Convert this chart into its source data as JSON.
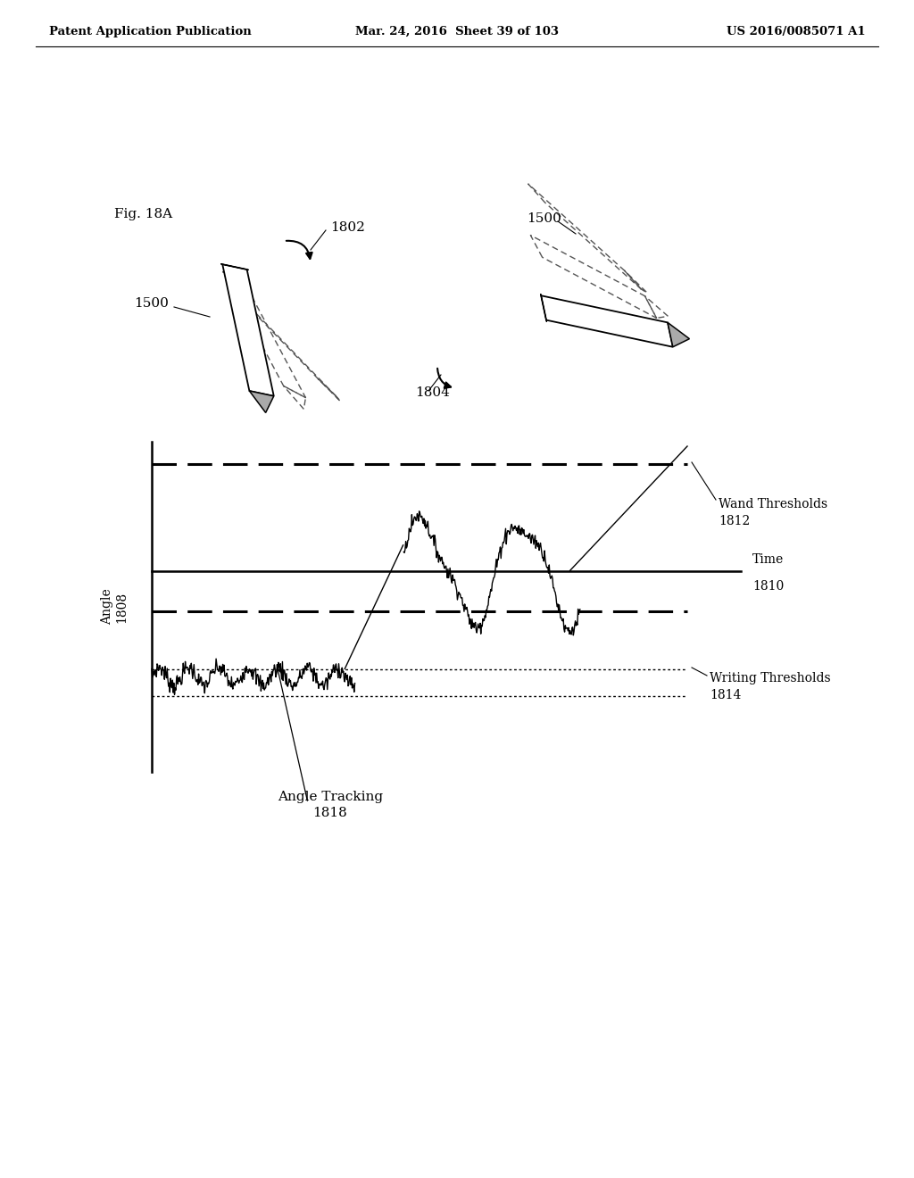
{
  "title_left": "Patent Application Publication",
  "title_center": "Mar. 24, 2016  Sheet 39 of 103",
  "title_right": "US 2016/0085071 A1",
  "fig_label": "Fig. 18A",
  "label_1500_left": "1500",
  "label_1802": "1802",
  "label_1804": "1804",
  "label_1500_right": "1500",
  "label_angle": "Angle\n1808",
  "label_wand": "Wand Thresholds\n1812",
  "label_writing": "Writing Thresholds\n1814",
  "label_tracking": "Angle Tracking\n1818",
  "bg_color": "#ffffff",
  "line_color": "#000000"
}
